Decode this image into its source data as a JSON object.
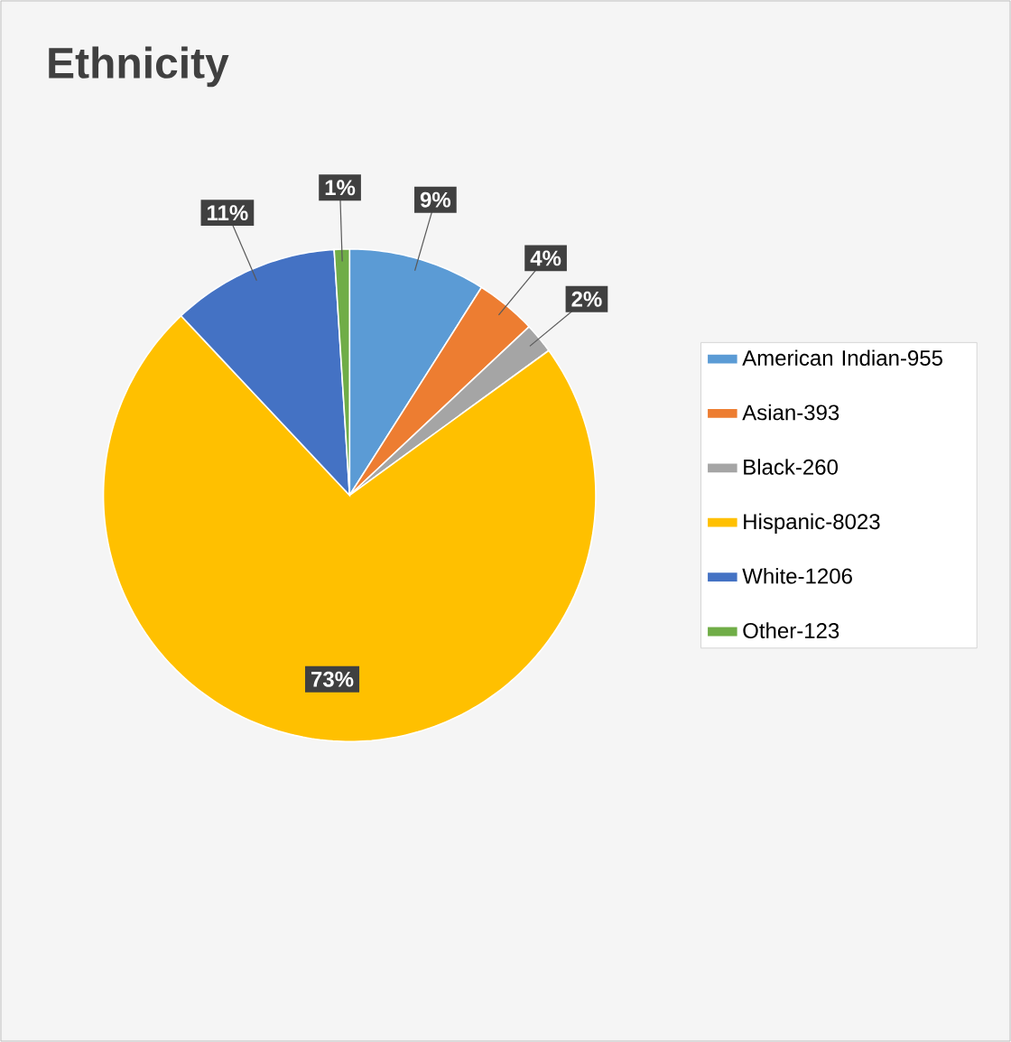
{
  "chart_data": {
    "type": "pie",
    "title": "Ethnicity",
    "categories": [
      "American Indian-955",
      "Asian-393",
      "Black-260",
      "Hispanic-8023",
      "White-1206",
      "Other-123"
    ],
    "values": [
      9,
      4,
      2,
      73,
      11,
      1
    ],
    "colors": [
      "#5b9bd5",
      "#ed7d31",
      "#a5a5a5",
      "#ffc000",
      "#4472c4",
      "#70ad47"
    ],
    "value_labels": [
      "9%",
      "4%",
      "2%",
      "73%",
      "11%",
      "1%"
    ],
    "legend": "right"
  }
}
